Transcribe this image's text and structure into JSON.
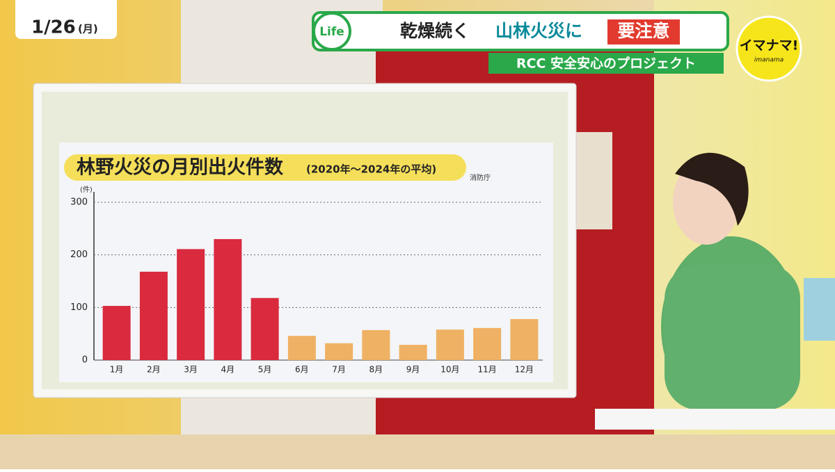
{
  "overlay": {
    "date": "1/26",
    "weekday": "(月)",
    "life": "Life",
    "headline": [
      "乾燥続く",
      "山林火災に",
      "要注意"
    ],
    "project": "RCC 安全安心のプロジェクト",
    "logo": "イマナマ!",
    "logo_sub": "imanama"
  },
  "chart_data": {
    "type": "bar",
    "title": "林野火災の月別出火件数",
    "subtitle": "(2020年～2024年の平均)",
    "source": "消防庁",
    "y_unit": "(件)",
    "categories": [
      "1月",
      "2月",
      "3月",
      "4月",
      "5月",
      "6月",
      "7月",
      "8月",
      "9月",
      "10月",
      "11月",
      "12月"
    ],
    "values": [
      103,
      168,
      211,
      230,
      118,
      46,
      32,
      57,
      29,
      58,
      61,
      78
    ],
    "colors": [
      "#d92a3e",
      "#d92a3e",
      "#d92a3e",
      "#d92a3e",
      "#d92a3e",
      "#efb163",
      "#efb163",
      "#efb163",
      "#efb163",
      "#efb163",
      "#efb163",
      "#efb163"
    ],
    "ylim": [
      0,
      300
    ],
    "yticks": [
      0,
      100,
      200,
      300
    ],
    "grid": true
  }
}
